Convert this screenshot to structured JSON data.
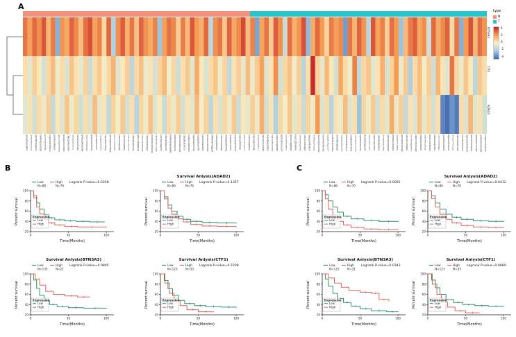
{
  "labels": {
    "a": "A",
    "b": "B",
    "c": "C"
  },
  "km_defaults": {
    "xlabel": "Time(Months)",
    "ylabel": "Percent survival",
    "expression_label": "Expression",
    "xticks": [
      0,
      50,
      100
    ],
    "yticks": [
      20,
      40,
      60,
      80,
      100
    ],
    "low_color": "#2C9467",
    "high_color": "#E0635A"
  },
  "chart_data": [
    {
      "id": "heatmap",
      "type": "heatmap",
      "legend_title": "type",
      "rows": [
        "BTN3A3",
        "CTF1",
        "ADAD2"
      ],
      "column_groups": {
        "labels": [
          "N",
          "T"
        ],
        "colors": [
          "#F2907B",
          "#2BC5C9"
        ],
        "split_fraction": 0.49
      },
      "colorscale": {
        "min": -4,
        "max": 4,
        "ticks": [
          "4",
          "2",
          "0",
          "-2",
          "-4"
        ],
        "stops": [
          {
            "v": -4,
            "c": "#3E68B0"
          },
          {
            "v": -2,
            "c": "#A9CDE2"
          },
          {
            "v": 0,
            "c": "#FBF0C4"
          },
          {
            "v": 2,
            "c": "#F59B52"
          },
          {
            "v": 4,
            "c": "#C32127"
          }
        ]
      },
      "values": [
        [
          2.6,
          1.9,
          2.8,
          2.2,
          3.1,
          1.4,
          2.5,
          -2.6,
          2.1,
          1.7,
          2.9,
          2.3,
          1.2,
          2.7,
          3.2,
          1.8,
          2.4,
          0.6,
          2.8,
          -1.8,
          2.2,
          3.0,
          1.5,
          2.6,
          1.1,
          2.9,
          2.1,
          1.6,
          2.4,
          -2.2,
          1.9,
          2.7,
          2.3,
          0.8,
          2.5,
          1.3,
          3.1,
          2.0,
          1.5,
          2.8,
          -1.5,
          2.2,
          2.6,
          1.0,
          2.9,
          1.7,
          2.3,
          3.3,
          1.2,
          2.4,
          -2.8,
          1.8,
          2.6,
          0.9,
          3.0,
          2.2,
          -1.2,
          2.7,
          1.5,
          2.1,
          3.2,
          -2.4,
          1.6,
          2.8,
          2.0,
          0.7,
          2.5,
          1.9,
          2.3,
          -3.0,
          2.6,
          1.4,
          2.9,
          2.1,
          -1.6,
          3.1,
          1.8,
          2.4,
          0.8,
          2.7,
          2.0,
          -2.2,
          1.3,
          2.5,
          3.0,
          1.7,
          2.2,
          -1.0,
          2.8,
          1.6,
          2.3,
          2.9,
          0.5,
          2.6,
          -2.6,
          2.0,
          3.2,
          1.4,
          2.7,
          2.1
        ],
        [
          0.4,
          -0.6,
          0.8,
          0.2,
          -1.0,
          0.6,
          1.2,
          -0.3,
          0.5,
          -0.8,
          1.0,
          0.3,
          -0.5,
          0.7,
          -1.2,
          0.4,
          0.9,
          -0.2,
          0.6,
          1.4,
          -0.7,
          0.2,
          0.8,
          -1.5,
          0.5,
          1.1,
          -0.4,
          0.3,
          -0.9,
          0.7,
          1.3,
          -0.2,
          0.6,
          -1.1,
          0.4,
          0.9,
          -0.6,
          1.6,
          0.2,
          -0.8,
          0.5,
          1.0,
          -0.3,
          0.7,
          -1.4,
          0.3,
          0.8,
          -0.5,
          1.2,
          -0.4,
          0.9,
          1.8,
          -0.7,
          0.3,
          2.2,
          -1.0,
          0.6,
          1.1,
          -0.3,
          0.8,
          -1.6,
          0.4,
          3.8,
          0.7,
          -0.5,
          1.3,
          0.2,
          -0.9,
          1.7,
          0.5,
          -0.2,
          2.4,
          -1.3,
          0.6,
          1.0,
          -0.6,
          0.3,
          1.5,
          -0.8,
          0.7,
          2.0,
          -0.4,
          0.9,
          -1.8,
          0.5,
          1.2,
          -0.2,
          0.8,
          -1.1,
          1.4,
          0.3,
          -0.7,
          2.6,
          0.6,
          -0.4,
          1.0,
          0.2,
          -1.5,
          0.9,
          0.4
        ],
        [
          -0.6,
          0.3,
          -1.0,
          0.5,
          -0.4,
          0.8,
          -1.3,
          0.2,
          -0.7,
          1.0,
          -0.3,
          0.6,
          -1.1,
          0.4,
          -0.8,
          1.2,
          -0.5,
          0.3,
          -1.4,
          0.7,
          -0.2,
          0.9,
          -0.9,
          0.4,
          -1.6,
          0.6,
          -0.3,
          1.1,
          -0.7,
          0.2,
          -1.2,
          0.5,
          -0.4,
          0.8,
          -1.0,
          0.3,
          -0.6,
          1.3,
          -0.2,
          0.7,
          -1.5,
          0.4,
          -0.8,
          0.6,
          -0.3,
          0.9,
          -1.1,
          0.2,
          -0.5,
          0.8,
          -0.4,
          1.5,
          -0.9,
          0.3,
          -1.8,
          0.6,
          -0.2,
          1.0,
          -0.6,
          0.4,
          -1.2,
          0.7,
          -0.3,
          2.0,
          -0.8,
          0.5,
          -1.6,
          0.3,
          -0.4,
          1.2,
          -0.7,
          0.4,
          -2.2,
          0.6,
          -0.3,
          0.9,
          -1.0,
          0.5,
          -0.6,
          1.6,
          -0.4,
          0.8,
          -1.3,
          0.3,
          -0.7,
          1.1,
          -0.5,
          0.6,
          -0.9,
          0.4,
          -3.4,
          -3.8,
          -3.1,
          -3.6,
          0.5,
          -0.8,
          1.4,
          -0.6,
          0.3,
          -1.0
        ]
      ]
    },
    {
      "id": "B1",
      "type": "km_survival",
      "panel": "B",
      "title": "",
      "pvalue_text": "Logrank P-value=0.0258",
      "series": [
        {
          "name": "Low",
          "n_text": "N=88",
          "color": "#2C9467",
          "points": [
            [
              0,
              100
            ],
            [
              4,
              90
            ],
            [
              8,
              76
            ],
            [
              12,
              64
            ],
            [
              18,
              53
            ],
            [
              24,
              47
            ],
            [
              32,
              43
            ],
            [
              45,
              41
            ],
            [
              60,
              40
            ],
            [
              78,
              39
            ],
            [
              98,
              39
            ]
          ]
        },
        {
          "name": "High",
          "n_text": "N=70",
          "color": "#E0635A",
          "points": [
            [
              0,
              100
            ],
            [
              4,
              86
            ],
            [
              8,
              68
            ],
            [
              12,
              55
            ],
            [
              18,
              44
            ],
            [
              24,
              37
            ],
            [
              32,
              33
            ],
            [
              45,
              30
            ],
            [
              62,
              29
            ],
            [
              100,
              28
            ]
          ]
        }
      ]
    },
    {
      "id": "B2",
      "type": "km_survival",
      "panel": "B",
      "title": "Survival Anlysis(ADAD2)",
      "pvalue_text": "Logrank P-value=0.1357",
      "series": [
        {
          "name": "Low",
          "n_text": "N=80",
          "color": "#2C9467",
          "points": [
            [
              0,
              100
            ],
            [
              5,
              88
            ],
            [
              10,
              72
            ],
            [
              15,
              60
            ],
            [
              22,
              50
            ],
            [
              30,
              44
            ],
            [
              40,
              40
            ],
            [
              55,
              38
            ],
            [
              75,
              37
            ],
            [
              100,
              36
            ]
          ]
        },
        {
          "name": "High",
          "n_text": "N=76",
          "color": "#E0635A",
          "points": [
            [
              0,
              100
            ],
            [
              5,
              84
            ],
            [
              10,
              66
            ],
            [
              15,
              54
            ],
            [
              22,
              45
            ],
            [
              30,
              39
            ],
            [
              40,
              34
            ],
            [
              55,
              31
            ],
            [
              75,
              30
            ],
            [
              100,
              29
            ]
          ]
        }
      ]
    },
    {
      "id": "B3",
      "type": "km_survival",
      "panel": "B",
      "title": "Survival Anlysis(BTN3A3)",
      "pvalue_text": "Logrank P-value=0.0895",
      "series": [
        {
          "name": "Low",
          "n_text": "N=135",
          "color": "#2C9467",
          "points": [
            [
              0,
              100
            ],
            [
              4,
              88
            ],
            [
              8,
              72
            ],
            [
              12,
              58
            ],
            [
              18,
              47
            ],
            [
              25,
              40
            ],
            [
              35,
              36
            ],
            [
              50,
              34
            ],
            [
              70,
              33
            ],
            [
              100,
              32
            ]
          ]
        },
        {
          "name": "High",
          "n_text": "N=21",
          "color": "#E0635A",
          "points": [
            [
              0,
              100
            ],
            [
              6,
              90
            ],
            [
              12,
              78
            ],
            [
              20,
              66
            ],
            [
              30,
              60
            ],
            [
              45,
              57
            ],
            [
              62,
              55
            ],
            [
              78,
              54
            ]
          ]
        }
      ]
    },
    {
      "id": "B4",
      "type": "km_survival",
      "panel": "B",
      "title": "Survival Anlysis(CTF1)",
      "pvalue_text": "Logrank P-value=0.2208",
      "series": [
        {
          "name": "Low",
          "n_text": "N=123",
          "color": "#2C9467",
          "points": [
            [
              0,
              100
            ],
            [
              5,
              87
            ],
            [
              10,
              71
            ],
            [
              16,
              58
            ],
            [
              24,
              48
            ],
            [
              32,
              42
            ],
            [
              45,
              38
            ],
            [
              60,
              36
            ],
            [
              80,
              35
            ],
            [
              100,
              34
            ]
          ]
        },
        {
          "name": "High",
          "n_text": "N=33",
          "color": "#E0635A",
          "points": [
            [
              0,
              100
            ],
            [
              6,
              82
            ],
            [
              12,
              62
            ],
            [
              18,
              48
            ],
            [
              26,
              38
            ],
            [
              35,
              30
            ],
            [
              50,
              26
            ],
            [
              70,
              25
            ]
          ]
        }
      ]
    },
    {
      "id": "C1",
      "type": "km_survival",
      "panel": "C",
      "title": "",
      "pvalue_text": "Logrank P-value=0.0092",
      "series": [
        {
          "name": "Low",
          "n_text": "N=86",
          "color": "#2C9467",
          "points": [
            [
              0,
              100
            ],
            [
              4,
              92
            ],
            [
              8,
              80
            ],
            [
              14,
              68
            ],
            [
              20,
              58
            ],
            [
              28,
              50
            ],
            [
              38,
              45
            ],
            [
              55,
              42
            ],
            [
              75,
              40
            ],
            [
              100,
              39
            ]
          ]
        },
        {
          "name": "High",
          "n_text": "N=70",
          "color": "#E0635A",
          "points": [
            [
              0,
              100
            ],
            [
              4,
              84
            ],
            [
              8,
              64
            ],
            [
              14,
              50
            ],
            [
              20,
              40
            ],
            [
              28,
              33
            ],
            [
              38,
              28
            ],
            [
              55,
              25
            ],
            [
              75,
              24
            ],
            [
              100,
              23
            ]
          ]
        }
      ]
    },
    {
      "id": "C2",
      "type": "km_survival",
      "panel": "C",
      "title": "Survival Anlysis(ADAD2)",
      "pvalue_text": "Logrank P-value=0.0412",
      "series": [
        {
          "name": "Low",
          "n_text": "N=80",
          "color": "#2C9467",
          "points": [
            [
              0,
              100
            ],
            [
              5,
              90
            ],
            [
              10,
              76
            ],
            [
              16,
              64
            ],
            [
              24,
              54
            ],
            [
              32,
              48
            ],
            [
              44,
              44
            ],
            [
              60,
              41
            ],
            [
              80,
              40
            ],
            [
              100,
              39
            ]
          ]
        },
        {
          "name": "High",
          "n_text": "N=76",
          "color": "#E0635A",
          "points": [
            [
              0,
              100
            ],
            [
              5,
              85
            ],
            [
              10,
              68
            ],
            [
              16,
              54
            ],
            [
              24,
              44
            ],
            [
              32,
              37
            ],
            [
              44,
              32
            ],
            [
              60,
              29
            ],
            [
              80,
              28
            ],
            [
              100,
              27
            ]
          ]
        }
      ]
    },
    {
      "id": "C3",
      "type": "km_survival",
      "panel": "C",
      "title": "Survival Anlysis(BTN3A3)",
      "pvalue_text": "Logrank P-value=0.0343",
      "series": [
        {
          "name": "Low",
          "n_text": "N=125",
          "color": "#2C9467",
          "points": [
            [
              0,
              100
            ],
            [
              4,
              90
            ],
            [
              8,
              76
            ],
            [
              14,
              62
            ],
            [
              20,
              52
            ],
            [
              28,
              44
            ],
            [
              38,
              37
            ],
            [
              50,
              32
            ],
            [
              65,
              28
            ],
            [
              85,
              26
            ],
            [
              100,
              25
            ]
          ]
        },
        {
          "name": "High",
          "n_text": "N=31",
          "color": "#E0635A",
          "points": [
            [
              0,
              100
            ],
            [
              8,
              92
            ],
            [
              16,
              82
            ],
            [
              25,
              74
            ],
            [
              35,
              68
            ],
            [
              50,
              64
            ],
            [
              65,
              62
            ],
            [
              75,
              50
            ],
            [
              88,
              46
            ]
          ]
        }
      ]
    },
    {
      "id": "C4",
      "type": "km_survival",
      "panel": "C",
      "title": "Survival Anlysis(CTF1)",
      "pvalue_text": "Logrank P-value=0.0889",
      "series": [
        {
          "name": "Low",
          "n_text": "N=123",
          "color": "#2C9467",
          "points": [
            [
              0,
              100
            ],
            [
              5,
              88
            ],
            [
              10,
              73
            ],
            [
              16,
              60
            ],
            [
              24,
              50
            ],
            [
              34,
              44
            ],
            [
              46,
              40
            ],
            [
              62,
              38
            ],
            [
              80,
              37
            ],
            [
              100,
              36
            ]
          ]
        },
        {
          "name": "High",
          "n_text": "N=33",
          "color": "#E0635A",
          "points": [
            [
              0,
              100
            ],
            [
              6,
              80
            ],
            [
              12,
              60
            ],
            [
              18,
              45
            ],
            [
              26,
              35
            ],
            [
              36,
              28
            ],
            [
              50,
              24
            ],
            [
              68,
              23
            ]
          ]
        }
      ]
    }
  ]
}
